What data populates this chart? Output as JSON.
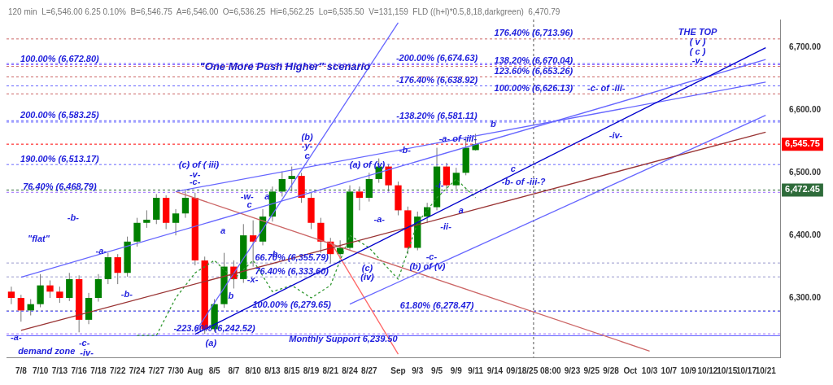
{
  "chart_data": {
    "type": "candlestick",
    "title": "\"One More Push Higher\" scenario",
    "subtitle": "120 min  L=6,546.00 6.25 0.10%  B=6,546.75  A=6,546.00  O=6,536.25  Hi=6,562.25  Lo=6,535.50  V=131,159  FLD ((h+l)*0.5,8,18,darkgreen)  6,470.79",
    "categories": [
      null,
      "7/8",
      null,
      "7/10",
      null,
      "7/13",
      null,
      "7/16",
      null,
      "7/18",
      null,
      "7/22",
      null,
      "7/24",
      null,
      "7/27",
      null,
      "7/30",
      null,
      "Aug",
      null,
      "8/5",
      null,
      "8/7",
      null,
      "8/10",
      null,
      "8/13",
      null,
      "8/15",
      null,
      "8/19",
      null,
      "8/21",
      null,
      "8/24",
      null,
      "8/27",
      null,
      null,
      "Sep",
      null,
      "9/3",
      null,
      "9/5",
      null,
      "9/9",
      null,
      "9/11",
      null,
      "9/14",
      null,
      null,
      null,
      "09/18/25 08:00",
      null,
      null,
      null,
      "9/23",
      null,
      "9/25",
      null,
      "9/28",
      null,
      "Oct",
      null,
      "10/3",
      null,
      "10/7",
      null,
      "10/9",
      null,
      "10/12",
      null,
      "10/15",
      null,
      "10/17",
      null,
      "10/21",
      null
    ],
    "ohlc": [
      [
        6310,
        6318,
        6290,
        6300
      ],
      [
        6300,
        6305,
        6262,
        6280
      ],
      [
        6280,
        6298,
        6272,
        6290
      ],
      [
        6290,
        6338,
        6285,
        6320
      ],
      [
        6320,
        6328,
        6300,
        6310
      ],
      [
        6310,
        6318,
        6292,
        6300
      ],
      [
        6300,
        6340,
        6295,
        6330
      ],
      [
        6330,
        6336,
        6245,
        6265
      ],
      [
        6265,
        6308,
        6258,
        6300
      ],
      [
        6300,
        6338,
        6294,
        6330
      ],
      [
        6330,
        6372,
        6322,
        6365
      ],
      [
        6365,
        6370,
        6322,
        6340
      ],
      [
        6340,
        6398,
        6334,
        6390
      ],
      [
        6390,
        6428,
        6382,
        6420
      ],
      [
        6420,
        6440,
        6412,
        6425
      ],
      [
        6425,
        6466,
        6418,
        6460
      ],
      [
        6460,
        6464,
        6410,
        6420
      ],
      [
        6420,
        6442,
        6400,
        6435
      ],
      [
        6435,
        6472,
        6428,
        6460
      ],
      [
        6460,
        6468,
        6352,
        6360
      ],
      [
        6360,
        6366,
        6242.5,
        6250
      ],
      [
        6250,
        6298,
        6246,
        6290
      ],
      [
        6290,
        6372,
        6284,
        6350
      ],
      [
        6350,
        6360,
        6315,
        6330
      ],
      [
        6330,
        6418,
        6324,
        6400
      ],
      [
        6400,
        6424,
        6350,
        6390
      ],
      [
        6390,
        6442,
        6384,
        6430
      ],
      [
        6430,
        6478,
        6422,
        6470
      ],
      [
        6470,
        6502,
        6462,
        6490
      ],
      [
        6490,
        6510,
        6470,
        6495
      ],
      [
        6495,
        6500,
        6452,
        6460
      ],
      [
        6460,
        6468,
        6410,
        6420
      ],
      [
        6420,
        6428,
        6372,
        6390
      ],
      [
        6390,
        6396,
        6355,
        6370
      ],
      [
        6370,
        6392,
        6362,
        6380
      ],
      [
        6380,
        6480,
        6376,
        6470
      ],
      [
        6470,
        6478,
        6440,
        6460
      ],
      [
        6460,
        6500,
        6454,
        6490
      ],
      [
        6490,
        6523,
        6484,
        6510
      ],
      [
        6510,
        6514,
        6470,
        6480
      ],
      [
        6480,
        6486,
        6432,
        6440
      ],
      [
        6440,
        6446,
        6370,
        6380
      ],
      [
        6380,
        6438,
        6376,
        6430
      ],
      [
        6430,
        6452,
        6420,
        6445
      ],
      [
        6445,
        6540,
        6440,
        6510
      ],
      [
        6510,
        6516,
        6474,
        6480
      ],
      [
        6480,
        6508,
        6474,
        6500
      ],
      [
        6500,
        6558,
        6496,
        6540
      ],
      [
        6536.25,
        6562.25,
        6535.5,
        6545.75
      ],
      null,
      null,
      null,
      null,
      null,
      null,
      null,
      null,
      null,
      null,
      null,
      null,
      null,
      null,
      null,
      null,
      null,
      null,
      null,
      null,
      null,
      null,
      null,
      null,
      null,
      null,
      null,
      null,
      null,
      null,
      null
    ],
    "colors": [
      "#ff0000",
      "#ff0000",
      "#008000",
      "#008000",
      "#ff0000",
      "#ff0000",
      "#008000",
      "#ff0000",
      "#008000",
      "#008000",
      "#008000",
      "#ff0000",
      "#008000",
      "#008000",
      "#008000",
      "#008000",
      "#ff0000",
      "#008000",
      "#008000",
      "#ff0000",
      "#ff0000",
      "#008000",
      "#008000",
      "#ff0000",
      "#008000",
      "#ff0000",
      "#008000",
      "#008000",
      "#008000",
      "#008000",
      "#ff0000",
      "#ff0000",
      "#ff0000",
      "#ff0000",
      "#008000",
      "#008000",
      "#ff0000",
      "#008000",
      "#008000",
      "#ff0000",
      "#ff0000",
      "#ff0000",
      "#008000",
      "#008000",
      "#008000",
      "#ff0000",
      "#008000",
      "#008000",
      "#008000",
      null,
      null,
      null,
      null,
      null,
      null,
      null,
      null,
      null,
      null,
      null,
      null,
      null,
      null,
      null,
      null,
      null,
      null,
      null,
      null,
      null,
      null,
      null,
      null,
      null,
      null,
      null,
      null,
      null,
      null,
      null
    ],
    "ylim": [
      6205,
      6745
    ],
    "yticks": [
      {
        "value": 6300,
        "label": "6,300.00"
      },
      {
        "value": 6400,
        "label": "6,400.00"
      },
      {
        "value": 6500,
        "label": "6,500.00"
      },
      {
        "value": 6600,
        "label": "6,600.00"
      },
      {
        "value": 6700,
        "label": "6,700.00"
      }
    ],
    "series": [
      {
        "type": "line",
        "color": "#0000cc",
        "x": [
          "Aug",
          "10/21"
        ],
        "values": [
          6242,
          6700
        ]
      },
      {
        "type": "line",
        "color": "#993333",
        "x": [
          "7/8",
          "10/21"
        ],
        "values": [
          6248,
          6565
        ]
      },
      {
        "type": "line",
        "color": "#6666ff",
        "x": [
          "7/8",
          "10/21"
        ],
        "values": [
          6333,
          6681
        ]
      },
      {
        "type": "line",
        "color": "#6666ff",
        "x": [
          "7/30",
          "10/21"
        ],
        "values": [
          6470,
          6645
        ]
      },
      {
        "type": "line",
        "color": "#6666ff",
        "x": [
          "8/24",
          "10/21"
        ],
        "values": [
          6290,
          6592
        ]
      },
      {
        "type": "line",
        "color": "#6666ff",
        "x": [
          "Aug",
          "Sep"
        ],
        "values": [
          6245,
          6740
        ]
      },
      {
        "type": "line",
        "color": "#cc6666",
        "x": [
          "7/30",
          "10/3"
        ],
        "values": [
          6470,
          6215
        ]
      },
      {
        "type": "line",
        "color": "#ff6666",
        "x": [
          "8/21",
          "Sep"
        ],
        "values": [
          6390,
          6210
        ]
      },
      {
        "type": "line",
        "color": "#339933",
        "line_style": "dotted",
        "x": [
          "7/24",
          "7/27",
          "7/30",
          "Aug",
          "8/5",
          "8/7",
          "8/10",
          "8/13",
          "8/15",
          "8/19",
          "8/21",
          "8/24",
          "8/27",
          "Sep",
          "9/3",
          "9/5",
          "9/9",
          "9/11"
        ],
        "values": [
          6240,
          6240,
          6300,
          6340,
          6360,
          6330,
          6360,
          6310,
          6320,
          6300,
          6320,
          6400,
          6380,
          6330,
          6420,
          6460,
          6490,
          6460
        ]
      }
    ],
    "ref_lines": [
      {
        "axis": "y",
        "value": 6672.8,
        "color": "#9966ff",
        "line_style": "dotted"
      },
      {
        "axis": "y",
        "value": 6583.25,
        "color": "#6666ff",
        "line_style": "dotted"
      },
      {
        "axis": "y",
        "value": 6513.17,
        "color": "#6666ff",
        "line_style": "dotted"
      },
      {
        "axis": "y",
        "value": 6468.79,
        "color": "#9966ff",
        "line_style": "dotted"
      },
      {
        "axis": "y",
        "value": 6242.52,
        "color": "#9966ff",
        "line_style": "dotted"
      },
      {
        "axis": "y",
        "value": 6674.63,
        "color": "#6666ff",
        "line_style": "dotted"
      },
      {
        "axis": "y",
        "value": 6638.92,
        "color": "#6666ff",
        "line_style": "dotted"
      },
      {
        "axis": "y",
        "value": 6581.11,
        "color": "#6666ff",
        "line_style": "dotted"
      },
      {
        "axis": "y",
        "value": 6278.47,
        "color": "#6666ff",
        "line_style": "dotted"
      },
      {
        "axis": "y",
        "value": 6239.5,
        "color": "#6666ff",
        "line_style": "solid"
      },
      {
        "axis": "y",
        "value": 6713.96,
        "color": "#cc6666",
        "line_style": "dotted"
      },
      {
        "axis": "y",
        "value": 6670.04,
        "color": "#cc6666",
        "line_style": "dotted"
      },
      {
        "axis": "y",
        "value": 6653.26,
        "color": "#cc6666",
        "line_style": "dotted"
      },
      {
        "axis": "y",
        "value": 6626.13,
        "color": "#cc6666",
        "line_style": "dotted"
      },
      {
        "axis": "y",
        "value": 6355.79,
        "color": "#9999cc",
        "line_style": "dotted"
      },
      {
        "axis": "y",
        "value": 6333.6,
        "color": "#9999cc",
        "line_style": "dotted"
      },
      {
        "axis": "y",
        "value": 6279.65,
        "color": "#9999cc",
        "line_style": "dotted"
      },
      {
        "axis": "y",
        "value": 6545.75,
        "label": "6,545.75",
        "color": "#ff0000",
        "line_style": "dotted"
      },
      {
        "axis": "y",
        "value": 6472.45,
        "label": "6,472.45",
        "color": "#2e6b3a",
        "line_style": "dotted"
      },
      {
        "axis": "x",
        "value": "09/18/25 08:00",
        "color": "#555555",
        "line_style": "dotted"
      }
    ],
    "annotations": [
      {
        "text": "100.00% (6,672.80)",
        "x": "7/13",
        "y": 6672.8
      },
      {
        "text": "200.00% (6,583.25)",
        "x": "7/13",
        "y": 6583.25
      },
      {
        "text": "190.00% (6,513.17)",
        "x": "7/13",
        "y": 6513.17
      },
      {
        "text": "76.40% (6,468.79)",
        "x": "7/13",
        "y": 6468.79
      },
      {
        "text": "-223.60% (6,242.52)",
        "x": "8/5",
        "y": 6242.52
      },
      {
        "text": "-200.00% (6,674.63)",
        "x": "9/5",
        "y": 6674.63
      },
      {
        "text": "-176.40% (6,638.92)",
        "x": "9/5",
        "y": 6638.92
      },
      {
        "text": "-138.20% (6,581.11)",
        "x": "9/5",
        "y": 6581.11
      },
      {
        "text": "61.80% (6,278.47)",
        "x": "9/5",
        "y": 6278.47
      },
      {
        "text": "176.40% (6,713.96)",
        "x": "09/18/25 08:00",
        "y": 6713.96
      },
      {
        "text": "138.20% (6,670.04)",
        "x": "09/18/25 08:00",
        "y": 6670.04
      },
      {
        "text": "123.60% (6,653.26)",
        "x": "09/18/25 08:00",
        "y": 6653.26
      },
      {
        "text": "100.00% (6,626.13)",
        "x": "09/18/25 08:00",
        "y": 6626.13
      },
      {
        "text": "66.70% (6,355.79)",
        "x": "8/15",
        "y": 6355.79
      },
      {
        "text": "76.40% (6,333.60)",
        "x": "8/15",
        "y": 6333.6
      },
      {
        "text": "100.00% (6,279.65)",
        "x": "8/15",
        "y": 6279.65
      },
      "\"flat\"",
      "-b-",
      "-a-",
      "-b-",
      "-a-",
      "demand zone",
      "-c-",
      "-iv-",
      "(c) of ( iii)",
      "-v-",
      "-c-",
      "-w-",
      "a",
      "c",
      "a",
      "b",
      "-x-",
      "b",
      "(a)",
      "Monthly Support 6,239.50",
      "(b)",
      "-y-",
      "c",
      "(a) of (v)",
      "-b-",
      "-a-",
      "(c)",
      "(iv)",
      "-c-",
      "(b) of (v)",
      "-i-",
      "-ii-",
      "a",
      "-a- of -iii-",
      "b",
      "c",
      "-b- of -iii-?",
      "-c- of -iii-",
      "-iv-",
      "THE TOP",
      "( v )",
      "( c )",
      "-v-"
    ]
  }
}
